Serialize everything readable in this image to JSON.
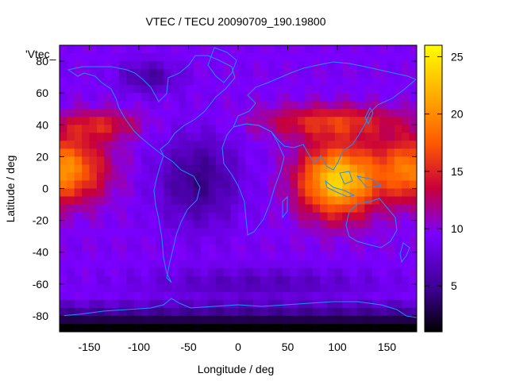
{
  "chart_data": {
    "type": "heatmap",
    "title": "VTEC / TECU 20090709_190.19800",
    "xlabel": "Longitude / deg",
    "ylabel": "Latitude / deg",
    "xlim": [
      -180,
      180
    ],
    "ylim": [
      -90,
      90
    ],
    "x_ticks": [
      -150,
      -100,
      -50,
      0,
      50,
      100,
      150
    ],
    "y_ticks": [
      -80,
      -60,
      -40,
      -20,
      0,
      20,
      40,
      60,
      80
    ],
    "legend_label": "'Vtec_",
    "legend_placement": "top-left",
    "colorbar": {
      "placement": "right",
      "range": [
        1,
        26
      ],
      "ticks": [
        5,
        10,
        15,
        20,
        25
      ],
      "colormap": [
        "#000000",
        "#3a008a",
        "#7a00ff",
        "#c8003a",
        "#ff5a00",
        "#ffa000",
        "#ffff00"
      ]
    },
    "overlay": {
      "name": "coastlines",
      "color": "#1e90ff"
    },
    "grid": false
  }
}
